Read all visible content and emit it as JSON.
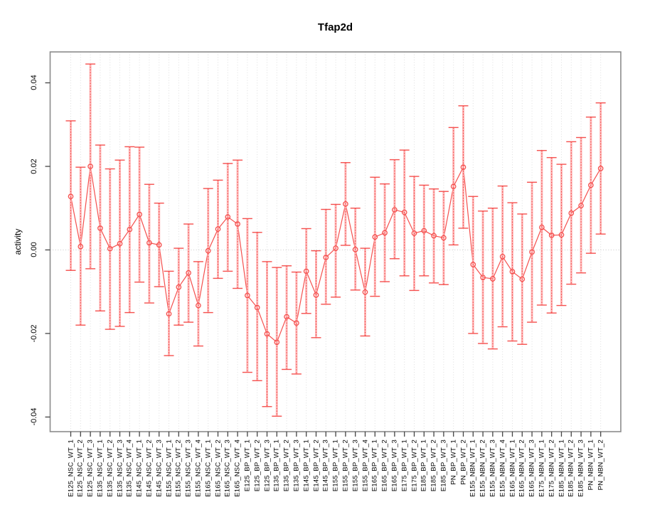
{
  "chart_data": {
    "type": "scatter",
    "title": "Tfap2d",
    "xlabel": "",
    "ylabel": "activity",
    "legend": "none",
    "grid": "vertical dotted gridline per category plus dotted zero line",
    "marker": "open-circle with error bars, consecutive points connected by line",
    "ylim": [
      -0.0435,
      0.0474
    ],
    "yticks": [
      "-0.04",
      "-0.02",
      "0.00",
      "0.02",
      "0.04"
    ],
    "ytick_values": [
      -0.04,
      -0.02,
      0.0,
      0.02,
      0.04
    ],
    "colors": {
      "series_red": "#f5504e",
      "errorbar_light": "#ffaaaa",
      "errorbar_dotted": "#ef4747",
      "gridline": "#dedede",
      "zero_line": "#c9c9c9",
      "box_border": "#8c8c8c",
      "tick": "#444444",
      "text": "#000000",
      "background": "#ffffff"
    },
    "categories": [
      "E125_NSC_WT_1",
      "E125_NSC_WT_2",
      "E125_NSC_WT_3",
      "E135_NSC_WT_1",
      "E135_NSC_WT_2",
      "E135_NSC_WT_3",
      "E135_NSC_WT_4",
      "E145_NSC_WT_1",
      "E145_NSC_WT_2",
      "E145_NSC_WT_3",
      "E155_NSC_WT_1",
      "E155_NSC_WT_2",
      "E155_NSC_WT_3",
      "E155_NSC_WT_4",
      "E165_NSC_WT_1",
      "E165_NSC_WT_2",
      "E165_NSC_WT_3",
      "E165_NSC_WT_4",
      "E125_BP_WT_1",
      "E125_BP_WT_2",
      "E125_BP_WT_3",
      "E135_BP_WT_1",
      "E135_BP_WT_2",
      "E135_BP_WT_3",
      "E145_BP_WT_1",
      "E145_BP_WT_2",
      "E145_BP_WT_3",
      "E155_BP_WT_1",
      "E155_BP_WT_2",
      "E155_BP_WT_3",
      "E155_BP_WT_4",
      "E165_BP_WT_1",
      "E165_BP_WT_2",
      "E165_BP_WT_3",
      "E175_BP_WT_1",
      "E175_BP_WT_2",
      "E185_BP_WT_1",
      "E185_BP_WT_2",
      "E185_BP_WT_3",
      "PN_BP_WT_1",
      "PN_BP_WT_2",
      "E155_NBN_WT_1",
      "E155_NBN_WT_2",
      "E155_NBN_WT_3",
      "E155_NBN_WT_4",
      "E165_NBN_WT_1",
      "E165_NBN_WT_2",
      "E165_NBN_WT_3",
      "E175_NBN_WT_1",
      "E175_NBN_WT_2",
      "E185_NBN_WT_1",
      "E185_NBN_WT_2",
      "E185_NBN_WT_3",
      "PN_NBN_WT_1",
      "PN_NBN_WT_2"
    ],
    "values": [
      0.0128,
      0.0008,
      0.02,
      0.0052,
      0.0003,
      0.0015,
      0.0049,
      0.0085,
      0.0017,
      0.0012,
      -0.0153,
      -0.0089,
      -0.0055,
      -0.0133,
      -0.0002,
      0.005,
      0.0079,
      0.0062,
      -0.0109,
      -0.0138,
      -0.0201,
      -0.0221,
      -0.016,
      -0.0175,
      -0.0051,
      -0.0108,
      -0.0018,
      0.0004,
      0.011,
      0.0001,
      -0.0101,
      0.0031,
      0.0041,
      0.0096,
      0.009,
      0.004,
      0.0046,
      0.0034,
      0.0029,
      0.0152,
      0.0198,
      -0.0035,
      -0.0066,
      -0.0069,
      -0.0016,
      -0.0052,
      -0.007,
      -0.0005,
      0.0054,
      0.0035,
      0.0036,
      0.0088,
      0.0106,
      0.0155,
      0.0195
    ],
    "ci_upper": [
      0.0309,
      0.0198,
      0.0445,
      0.0251,
      0.0194,
      0.0215,
      0.0247,
      0.0246,
      0.0157,
      0.0112,
      -0.0051,
      0.0004,
      0.0062,
      -0.0028,
      0.0147,
      0.0167,
      0.0207,
      0.0215,
      0.0075,
      0.0042,
      -0.0028,
      -0.0042,
      -0.0038,
      -0.0053,
      0.0051,
      -0.0002,
      0.0097,
      0.0109,
      0.0209,
      0.01,
      0.0004,
      0.0174,
      0.0158,
      0.0216,
      0.0239,
      0.0176,
      0.0155,
      0.0146,
      0.014,
      0.0293,
      0.0345,
      0.0128,
      0.0093,
      0.01,
      0.0153,
      0.0113,
      0.0086,
      0.0162,
      0.0238,
      0.0221,
      0.0205,
      0.0259,
      0.0269,
      0.0318,
      0.0352
    ],
    "ci_lower": [
      -0.0049,
      -0.018,
      -0.0045,
      -0.0146,
      -0.019,
      -0.0183,
      -0.015,
      -0.0077,
      -0.0127,
      -0.0088,
      -0.0253,
      -0.018,
      -0.0173,
      -0.023,
      -0.015,
      -0.0068,
      -0.0051,
      -0.0092,
      -0.0293,
      -0.0313,
      -0.0375,
      -0.0398,
      -0.0286,
      -0.0297,
      -0.0152,
      -0.021,
      -0.013,
      -0.0113,
      0.0011,
      -0.0096,
      -0.0206,
      -0.0111,
      -0.0076,
      -0.0021,
      -0.0062,
      -0.0097,
      -0.0062,
      -0.0079,
      -0.0083,
      0.0012,
      0.0052,
      -0.02,
      -0.0224,
      -0.0237,
      -0.0184,
      -0.0218,
      -0.0226,
      -0.0173,
      -0.0132,
      -0.0151,
      -0.0133,
      -0.0082,
      -0.0055,
      -0.0008,
      0.0038
    ]
  }
}
